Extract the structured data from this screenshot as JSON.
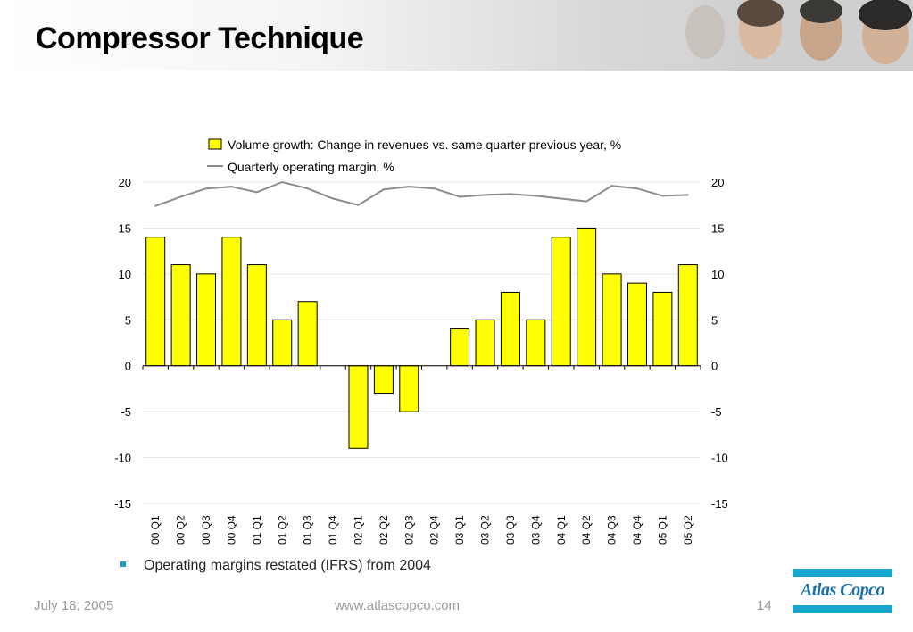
{
  "slide": {
    "title": "Compressor Technique",
    "footnote": "Operating margins restated (IFRS) from 2004",
    "date": "July 18, 2005",
    "url": "www.atlascopco.com",
    "page": "14",
    "logo_text": "Atlas Copco"
  },
  "colors": {
    "bar_fill": "#ffff00",
    "bar_stroke": "#000000",
    "line": "#8c8c8c",
    "brand": "#1aa7cf"
  },
  "chart_data": {
    "type": "bar",
    "categories": [
      "00 Q1",
      "00 Q2",
      "00 Q3",
      "00 Q4",
      "01 Q1",
      "01 Q2",
      "01 Q3",
      "01 Q4",
      "02 Q1",
      "02 Q2",
      "02 Q3",
      "02 Q4",
      "03 Q1",
      "03 Q2",
      "03 Q3",
      "03 Q4",
      "04 Q1",
      "04 Q2",
      "04 Q3",
      "04 Q4",
      "05 Q1",
      "05 Q2"
    ],
    "series": [
      {
        "name": "Volume growth: Change in revenues vs. same quarter previous year, %",
        "type": "bar",
        "axis": "left",
        "values": [
          14,
          11,
          10,
          14,
          11,
          5,
          7,
          0,
          -9,
          -3,
          -5,
          0,
          4,
          5,
          8,
          5,
          14,
          15,
          10,
          9,
          8,
          11
        ]
      },
      {
        "name": "Quarterly operating margin, %",
        "type": "line",
        "axis": "right",
        "values": [
          17.4,
          18.4,
          19.3,
          19.5,
          18.9,
          20.0,
          19.3,
          18.2,
          17.5,
          19.2,
          19.5,
          19.3,
          18.4,
          18.6,
          18.7,
          18.5,
          18.2,
          17.9,
          19.6,
          19.3,
          18.5,
          18.6
        ]
      }
    ],
    "left_axis": {
      "ylim": [
        -15,
        20
      ],
      "ticks": [
        "-15",
        "-10",
        "-5",
        "0",
        "5",
        "10",
        "15",
        "20"
      ]
    },
    "right_axis": {
      "ylim": [
        -15,
        20
      ],
      "ticks": [
        "-15",
        "-10",
        "-5",
        "0",
        "5",
        "10",
        "15",
        "20"
      ]
    },
    "grid": true,
    "legend": "top"
  }
}
